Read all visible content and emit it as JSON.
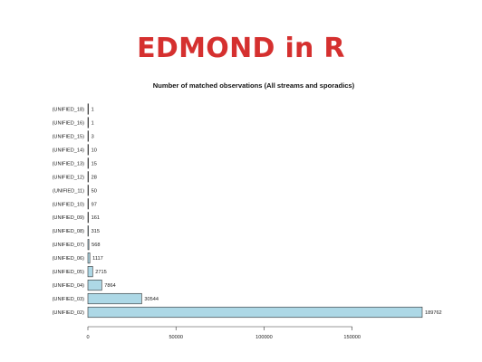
{
  "slide": {
    "title": "EDMOND in R"
  },
  "chart_data": {
    "type": "bar",
    "orientation": "horizontal",
    "title": "Number of matched observations (All streams and sporadics)",
    "xlabel": "",
    "ylabel": "",
    "categories": [
      "(UNIFIED_18)",
      "(UNIFIED_16)",
      "(UNIFIED_15)",
      "(UNIFIED_14)",
      "(UNIFIED_13)",
      "(UNIFIED_12)",
      "(UNIFIED_11)",
      "(UNIFIED_10)",
      "(UNIFIED_09)",
      "(UNIFIED_08)",
      "(UNIFIED_07)",
      "(UNIFIED_06)",
      "(UNIFIED_05)",
      "(UNIFIED_04)",
      "(UNIFIED_03)",
      "(UNIFIED_02)"
    ],
    "values": [
      1,
      1,
      3,
      10,
      15,
      28,
      50,
      97,
      161,
      315,
      568,
      1117,
      2715,
      7864,
      30544,
      189762
    ],
    "value_labels": [
      "1",
      "1",
      "3",
      "10",
      "15",
      "28",
      "50",
      "97",
      "161",
      "315",
      "568",
      "1117",
      "2715",
      "7864",
      "30544",
      "189762"
    ],
    "x_ticks": [
      0,
      50000,
      100000,
      150000
    ],
    "x_tick_labels": [
      "0",
      "50000",
      "100000",
      "150000"
    ],
    "xlim": [
      0,
      189762
    ],
    "grid": false,
    "legend": "none",
    "colors": {
      "bar_fill": "#add8e6",
      "bar_edge": "#333333",
      "title": "#d5302f"
    }
  }
}
